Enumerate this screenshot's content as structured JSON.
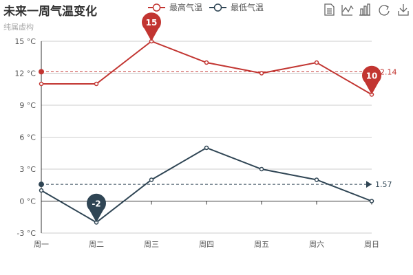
{
  "chart_data": {
    "type": "line",
    "title": "未来一周气温变化",
    "subtitle": "纯属虚构",
    "categories": [
      "周一",
      "周二",
      "周三",
      "周四",
      "周五",
      "周六",
      "周日"
    ],
    "ylim": [
      -3,
      15
    ],
    "yticks": [
      -3,
      0,
      3,
      6,
      9,
      12,
      15
    ],
    "yunit": "°C",
    "grid": true,
    "legend_position": "top-center",
    "series": [
      {
        "name": "最高气温",
        "values": [
          11,
          11,
          15,
          13,
          12,
          13,
          10
        ],
        "color": "#c23531",
        "max_label": "15",
        "min_label": "10",
        "average": 12.14,
        "average_label": "12.14"
      },
      {
        "name": "最低气温",
        "values": [
          1,
          -2,
          2,
          5,
          3,
          2,
          0
        ],
        "color": "#2f4554",
        "min_label": "-2",
        "average": 1.57,
        "average_label": "1.57"
      }
    ]
  },
  "toolbox": {
    "icons": [
      "data-view-icon",
      "line-chart-icon",
      "bar-chart-icon",
      "restore-icon",
      "save-image-icon"
    ]
  }
}
